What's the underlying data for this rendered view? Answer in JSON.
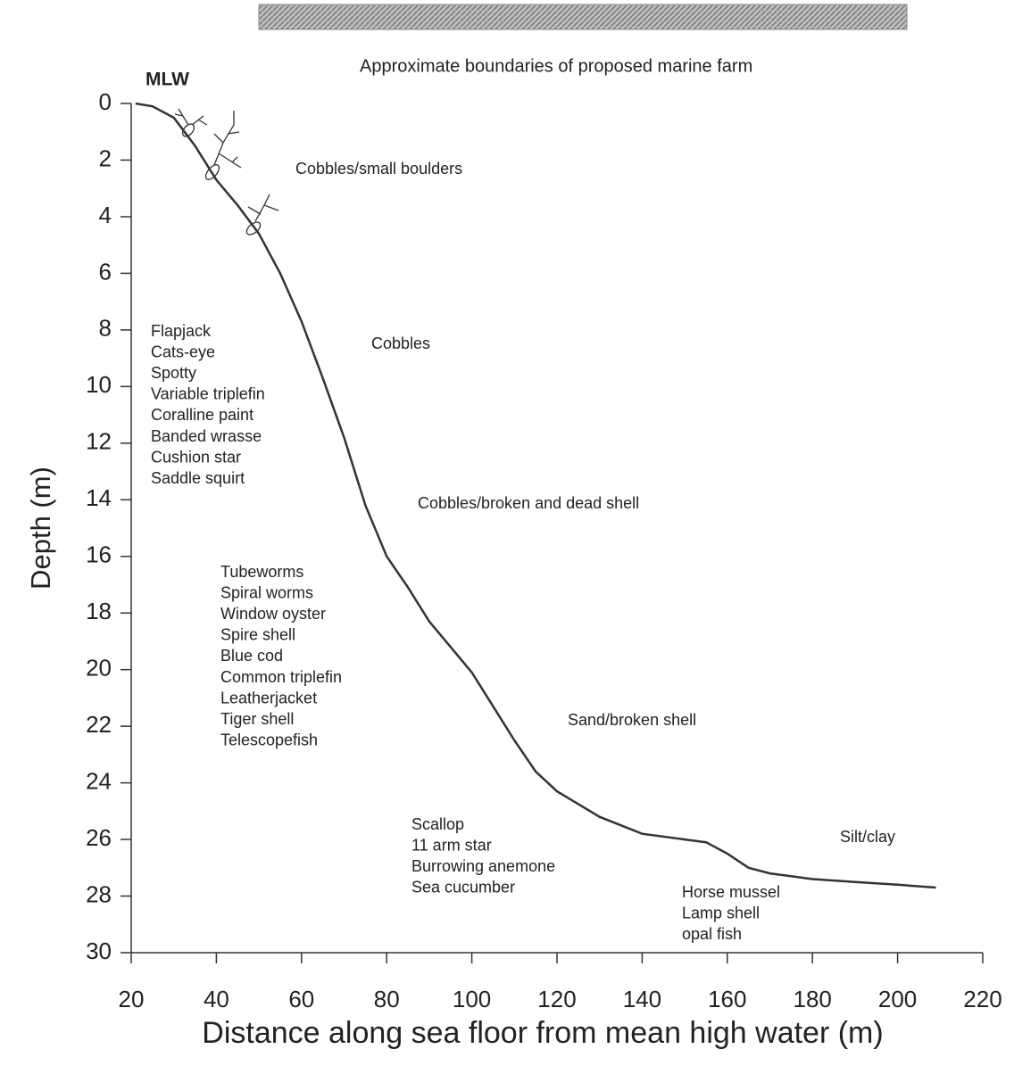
{
  "chart_data": {
    "type": "line",
    "banner_caption": "Approximate boundaries of proposed marine farm",
    "x_label": "Distance along sea floor from mean high water (m)",
    "y_label": "Depth (m)",
    "xlim": [
      20,
      220
    ],
    "xticks": [
      20,
      40,
      60,
      80,
      100,
      120,
      140,
      160,
      180,
      200,
      220
    ],
    "ylim": [
      0,
      30
    ],
    "yticks": [
      0,
      2,
      4,
      6,
      8,
      10,
      12,
      14,
      16,
      18,
      20,
      22,
      24,
      26,
      28,
      30
    ],
    "y_inverted": true,
    "series": [
      {
        "color": "#333333",
        "x": [
          21,
          25,
          30,
          35,
          40,
          45,
          50,
          55,
          60,
          65,
          70,
          75,
          80,
          85,
          90,
          95,
          100,
          105,
          110,
          115,
          120,
          130,
          140,
          150,
          155,
          160,
          165,
          170,
          180,
          190,
          200,
          209
        ],
        "values": [
          0,
          0.1,
          0.5,
          1.5,
          2.7,
          3.6,
          4.6,
          6,
          7.7,
          9.7,
          11.8,
          14.2,
          16,
          17.1,
          18.3,
          19.2,
          20.1,
          21.3,
          22.5,
          23.6,
          24.3,
          25.2,
          25.8,
          26,
          26.1,
          26.5,
          27,
          27.2,
          27.4,
          27.5,
          27.6,
          27.7
        ]
      }
    ],
    "annotations": [
      "MLW",
      "Cobbles/small boulders",
      "Cobbles",
      "Cobbles/broken and dead shell",
      "Sand/broken shell",
      "Silt/clay"
    ],
    "species_lists": [
      [
        "Flapjack",
        "Cats-eye",
        "Spotty",
        "Variable triplefin",
        "Coralline paint",
        "Banded wrasse",
        "Cushion star",
        "Saddle squirt"
      ],
      [
        "Tubeworms",
        "Spiral worms",
        "Window  oyster",
        "Spire shell",
        "Blue cod",
        "Common triplefin",
        "Leatherjacket",
        "Tiger shell",
        "Telescopefish"
      ],
      [
        "Scallop",
        "11 arm star",
        "Burrowing anemone",
        "Sea cucumber"
      ],
      [
        "Horse mussel",
        "Lamp shell",
        "opal fish"
      ]
    ]
  }
}
